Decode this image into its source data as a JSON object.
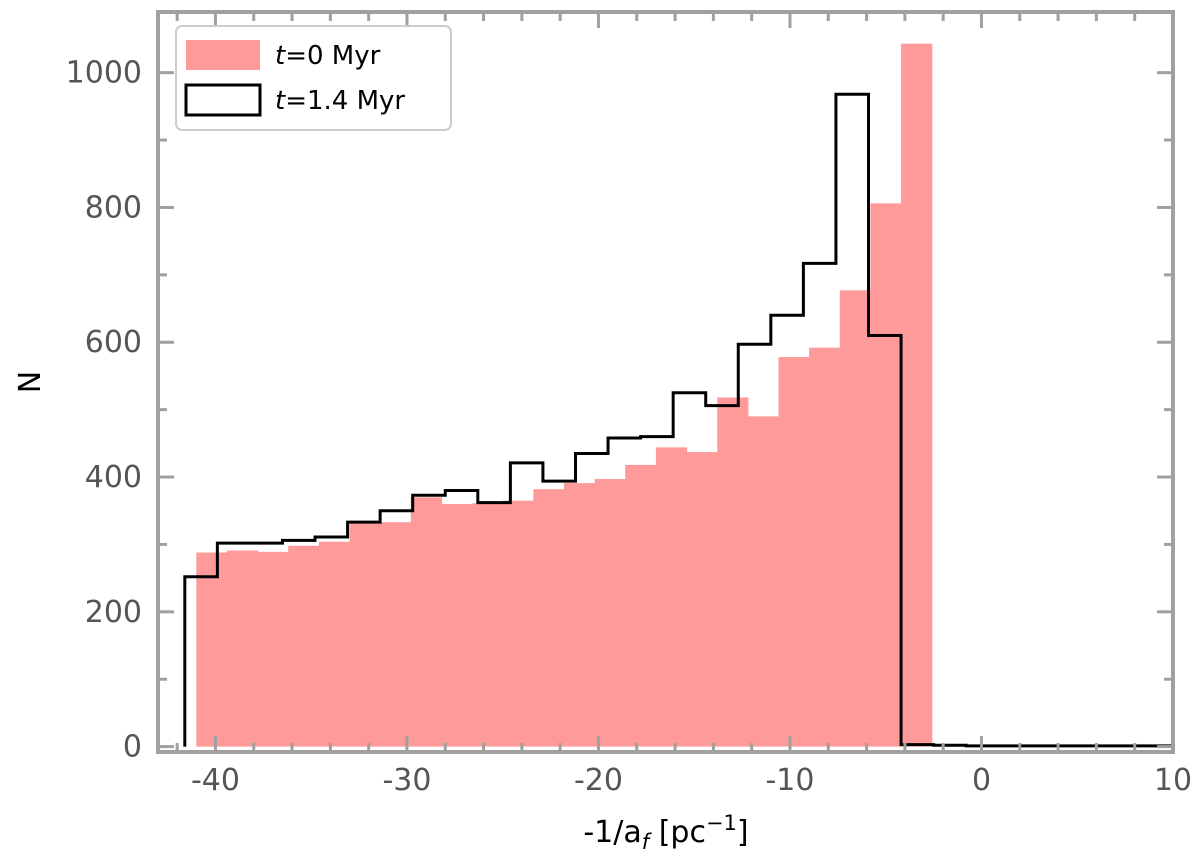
{
  "chart_data": {
    "type": "bar",
    "xlabel_main": "-1/a",
    "xlabel_sub": "f",
    "xlabel_unit_pre": " [pc",
    "xlabel_unit_sup": "−1",
    "xlabel_unit_post": "]",
    "ylabel": "N",
    "xlim": [
      -43,
      10
    ],
    "ylim": [
      -8,
      1090
    ],
    "xticks": [
      -40,
      -30,
      -20,
      -10,
      0,
      10
    ],
    "xtick_labels": [
      "-40",
      "-30",
      "-20",
      "-10",
      "0",
      "10"
    ],
    "yticks": [
      0,
      200,
      400,
      600,
      800,
      1000
    ],
    "ytick_labels": [
      "0",
      "200",
      "400",
      "600",
      "800",
      "1000"
    ],
    "legend_position": "top-left",
    "colors": {
      "fill_series": "#ff9a9a",
      "step_series": "#000000",
      "frame": "#a0a0a0"
    },
    "series": [
      {
        "label_italic": "t",
        "label_rest": "=0 Myr",
        "style": "filled-histogram",
        "bin_edges": [
          -41.0,
          -39.4,
          -37.8,
          -36.2,
          -34.6,
          -33.0,
          -31.4,
          -29.8,
          -28.2,
          -26.6,
          -25.0,
          -23.4,
          -21.8,
          -20.2,
          -18.6,
          -17.0,
          -15.4,
          -13.8,
          -12.2,
          -10.6,
          -9.0,
          -7.4,
          -5.8,
          -4.2,
          -2.6,
          -1.0
        ],
        "values": [
          288,
          291,
          289,
          298,
          304,
          331,
          333,
          370,
          360,
          361,
          365,
          382,
          391,
          397,
          418,
          444,
          437,
          518,
          490,
          578,
          592,
          677,
          806,
          1043,
          0
        ]
      },
      {
        "label_italic": "t",
        "label_rest": "=1.4 Myr",
        "style": "step-histogram",
        "bin_edges": [
          -41.6,
          -39.9,
          -38.2,
          -36.5,
          -34.8,
          -33.1,
          -31.4,
          -29.7,
          -28.0,
          -26.3,
          -24.6,
          -22.9,
          -21.2,
          -19.5,
          -17.8,
          -16.1,
          -14.4,
          -12.7,
          -11.0,
          -9.3,
          -7.6,
          -5.9,
          -4.2,
          -2.5,
          -0.8,
          0.9,
          2.6,
          4.3,
          6.0,
          7.7,
          9.4,
          10.0
        ],
        "values": [
          252,
          302,
          302,
          306,
          311,
          333,
          350,
          373,
          380,
          362,
          421,
          394,
          435,
          458,
          460,
          525,
          506,
          597,
          640,
          717,
          968,
          610,
          3,
          2,
          1,
          1,
          1,
          1,
          1,
          1,
          1
        ]
      }
    ]
  }
}
